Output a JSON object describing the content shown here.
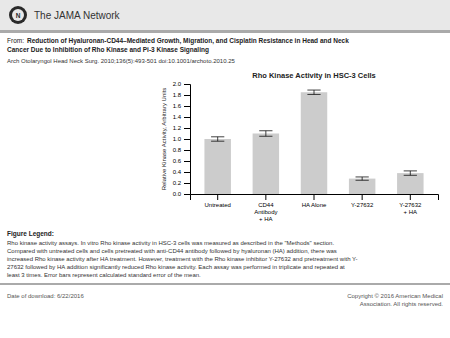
{
  "chart_data": {
    "type": "bar",
    "title": "Rho Kinase Activity in HSC-3 Cells",
    "ylabel": "Relative Kinase Activity, Arbitrary Units",
    "categories": [
      "Untreated",
      "CD44\nAntibody\n+ HA",
      "HA Alone",
      "Y-27632",
      "Y-27632\n+ HA"
    ],
    "values": [
      1.0,
      1.1,
      1.85,
      0.28,
      0.38
    ],
    "errors": [
      0.04,
      0.05,
      0.04,
      0.03,
      0.04
    ],
    "color": "#cccccc",
    "ylim": [
      0,
      2.0
    ],
    "yticks": [
      {
        "value": 0.0,
        "label": "0.0"
      },
      0.2,
      0.4,
      0.6,
      0.8,
      {
        "value": 1.0,
        "label": "1.0"
      },
      1.2,
      1.4,
      1.6,
      1.8,
      {
        "value": 2.0,
        "label": "2.0"
      }
    ],
    "grid": false,
    "annotations": [
      "N",
      "The JAMA Network",
      "From:",
      "Reduction of Hyaluronan-CD44–Mediated Growth, Migration, and Cisplatin Resistance in Head and Neck",
      "Cancer Due to Inhibition of Rho Kinase and Pi-3 Kinase Signaling",
      "Arch Otolaryngol Head Neck Surg. 2010;136(5):493-501  doi:10.1001/archoto.2010.25",
      "Figure Legend:",
      "Rho kinase activity assays.  In vitro Rho kinase activity in HSC-3 cells was measured as described in the \"Methods\" section.",
      "Compared with untreated cells and cells pretreated with anti-CD44 antibody followed by hyaluronan (HA) addition, there was",
      "increased Rho kinase activity after HA treatment. However, treatment with the Rho kinase inhibitor Y-27632 and pretreatment with Y-",
      "27632 followed by HA addition significantly reduced Rho kinase activity. Each assay was performed in triplicate and repeated at",
      "least 3 times. Error bars represent calculated standard error of the mean.",
      "Date of download: 6/22/2016",
      "Copyright © 2016 American Medical\nAssociation. All rights reserved."
    ]
  }
}
